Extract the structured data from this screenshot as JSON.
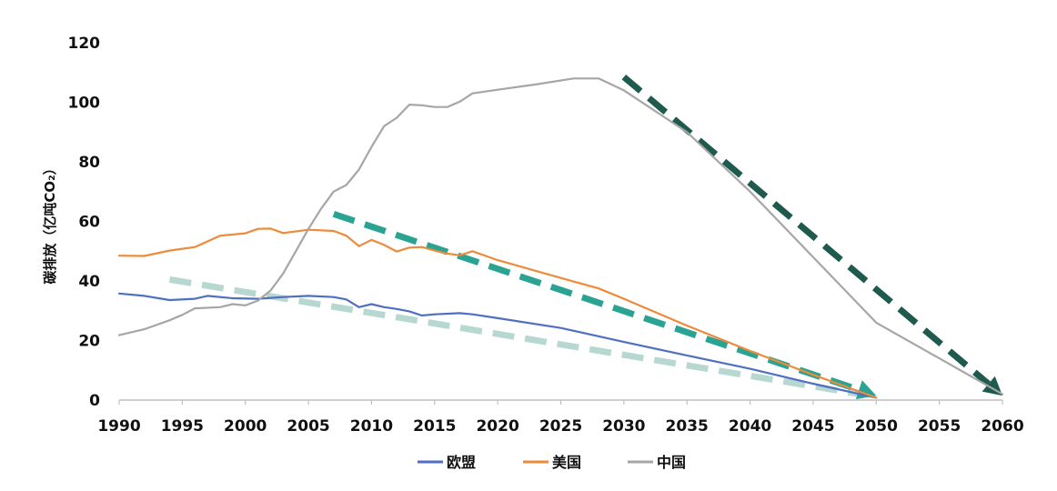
{
  "chart_data": {
    "type": "line",
    "ylabel": "碳排放（亿吨CO₂）",
    "xlim": [
      1990,
      2060
    ],
    "ylim": [
      0,
      120
    ],
    "x_ticks": [
      1990,
      1995,
      2000,
      2005,
      2010,
      2015,
      2020,
      2025,
      2030,
      2035,
      2040,
      2045,
      2050,
      2055,
      2060
    ],
    "y_ticks": [
      0,
      20,
      40,
      60,
      80,
      100,
      120
    ],
    "grid": false,
    "legend": "bottom",
    "series": [
      {
        "name": "欧盟",
        "color": "#4f6fc1",
        "points": [
          [
            1990,
            35.8
          ],
          [
            1992,
            35
          ],
          [
            1994,
            33.6
          ],
          [
            1996,
            34
          ],
          [
            1997,
            35
          ],
          [
            1999,
            34.2
          ],
          [
            2001,
            34
          ],
          [
            2003,
            34.6
          ],
          [
            2005,
            35
          ],
          [
            2007,
            34.6
          ],
          [
            2008,
            33.8
          ],
          [
            2009,
            31.2
          ],
          [
            2010,
            32.2
          ],
          [
            2011,
            31.2
          ],
          [
            2012,
            30.6
          ],
          [
            2013,
            29.8
          ],
          [
            2014,
            28.4
          ],
          [
            2015,
            28.8
          ],
          [
            2017,
            29.2
          ],
          [
            2018,
            28.8
          ],
          [
            2020,
            27.5
          ],
          [
            2025,
            24.2
          ],
          [
            2030,
            19.5
          ],
          [
            2035,
            15
          ],
          [
            2040,
            10.5
          ],
          [
            2045,
            5.5
          ],
          [
            2050,
            0.8
          ]
        ]
      },
      {
        "name": "美国",
        "color": "#ed8b3b",
        "points": [
          [
            1990,
            48.5
          ],
          [
            1992,
            48.4
          ],
          [
            1994,
            50.2
          ],
          [
            1996,
            51.4
          ],
          [
            1998,
            55.2
          ],
          [
            2000,
            56
          ],
          [
            2001,
            57.5
          ],
          [
            2002,
            57.6
          ],
          [
            2003,
            56.1
          ],
          [
            2005,
            57.2
          ],
          [
            2007,
            56.8
          ],
          [
            2008,
            55.2
          ],
          [
            2009,
            51.7
          ],
          [
            2010,
            53.8
          ],
          [
            2011,
            52.1
          ],
          [
            2012,
            49.9
          ],
          [
            2013,
            51.2
          ],
          [
            2014,
            51.4
          ],
          [
            2015,
            50.2
          ],
          [
            2016,
            49.2
          ],
          [
            2017,
            48.6
          ],
          [
            2018,
            50
          ],
          [
            2020,
            47
          ],
          [
            2025,
            41
          ],
          [
            2028,
            37.5
          ],
          [
            2030,
            34
          ],
          [
            2035,
            25
          ],
          [
            2040,
            16.5
          ],
          [
            2045,
            8.5
          ],
          [
            2050,
            0.8
          ]
        ]
      },
      {
        "name": "中国",
        "color": "#a6a6a6",
        "points": [
          [
            1990,
            21.8
          ],
          [
            1992,
            23.8
          ],
          [
            1994,
            26.8
          ],
          [
            1995,
            28.6
          ],
          [
            1996,
            30.8
          ],
          [
            1998,
            31.2
          ],
          [
            1999,
            32.2
          ],
          [
            2000,
            31.8
          ],
          [
            2001,
            33.4
          ],
          [
            2002,
            36.8
          ],
          [
            2003,
            42.5
          ],
          [
            2004,
            50
          ],
          [
            2005,
            57.5
          ],
          [
            2006,
            64.2
          ],
          [
            2007,
            70
          ],
          [
            2008,
            72.2
          ],
          [
            2009,
            77.4
          ],
          [
            2010,
            85
          ],
          [
            2011,
            92
          ],
          [
            2012,
            94.8
          ],
          [
            2013,
            99.2
          ],
          [
            2014,
            99
          ],
          [
            2015,
            98.4
          ],
          [
            2016,
            98.4
          ],
          [
            2017,
            100.2
          ],
          [
            2018,
            103
          ],
          [
            2020,
            104.2
          ],
          [
            2023,
            106
          ],
          [
            2026,
            108
          ],
          [
            2028,
            108
          ],
          [
            2030,
            104
          ],
          [
            2035,
            90
          ],
          [
            2040,
            70
          ],
          [
            2045,
            48
          ],
          [
            2050,
            26
          ],
          [
            2055,
            14
          ],
          [
            2060,
            2
          ]
        ]
      }
    ],
    "trend_arrows": [
      {
        "color": "#b7d8d0",
        "start": [
          1994,
          40.5
        ],
        "end": [
          2049,
          1.8
        ],
        "head": false
      },
      {
        "color": "#2aa393",
        "start": [
          2007,
          62.5
        ],
        "end": [
          2050,
          1.5
        ],
        "head": true
      },
      {
        "color": "#1f5a4e",
        "start": [
          2030,
          108.5
        ],
        "end": [
          2060,
          1.5
        ],
        "head": true
      }
    ]
  }
}
